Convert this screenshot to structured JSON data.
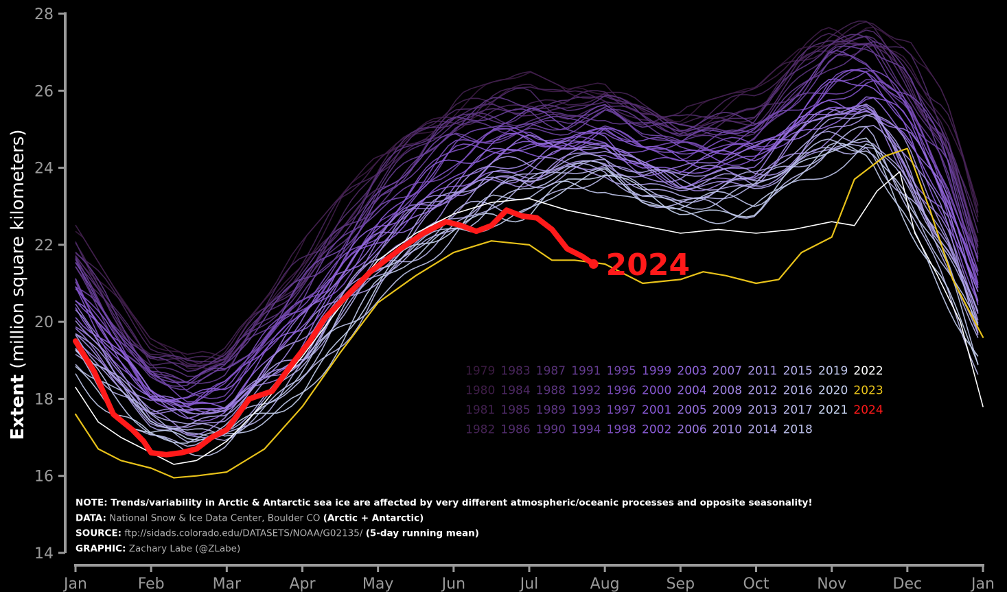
{
  "chart_data": {
    "type": "line",
    "title": "",
    "ylabel_bold": "Extent",
    "ylabel_rest": " (million square kilometers)",
    "xlabel": "",
    "ylim": [
      14,
      28
    ],
    "y_ticks": [
      14,
      16,
      18,
      20,
      22,
      24,
      26,
      28
    ],
    "x_tick_labels": [
      "Jan",
      "Feb",
      "Mar",
      "Apr",
      "May",
      "Jun",
      "Jul",
      "Aug",
      "Sep",
      "Oct",
      "Nov",
      "Dec",
      "Jan"
    ],
    "grid": false,
    "legend_position": "lower-right",
    "end_label": "2024",
    "colors": {
      "background": "#000000",
      "axis": "#9a9a9a",
      "year_2024": "#ff1a1a",
      "year_2023": "#e8c21a",
      "year_2022": "#ffffff",
      "early_years": "#3a1a40",
      "mid_years": "#8a5ad8",
      "recent_years": "#cfe6f2"
    },
    "legend_columns": [
      [
        "1979",
        "1980",
        "1981",
        "1982"
      ],
      [
        "1983",
        "1984",
        "1985",
        "1986"
      ],
      [
        "1987",
        "1988",
        "1989",
        "1990"
      ],
      [
        "1991",
        "1992",
        "1993",
        "1994"
      ],
      [
        "1995",
        "1996",
        "1997",
        "1998"
      ],
      [
        "1999",
        "2000",
        "2001",
        "2002"
      ],
      [
        "2003",
        "2004",
        "2005",
        "2006"
      ],
      [
        "2007",
        "2008",
        "2009",
        "2010"
      ],
      [
        "2011",
        "2012",
        "2013",
        "2014"
      ],
      [
        "2015",
        "2016",
        "2017",
        "2018"
      ],
      [
        "2019",
        "2020",
        "2021"
      ],
      [
        "2022",
        "2023",
        "2024"
      ]
    ],
    "climatology_envelope": {
      "x_month": [
        0,
        0.5,
        1,
        1.5,
        2,
        3,
        4,
        5,
        5.5,
        6,
        6.5,
        7,
        7.5,
        8,
        9,
        10,
        10.5,
        11,
        11.5,
        12
      ],
      "upper": [
        22.6,
        21,
        19.6,
        19.2,
        19.5,
        22.2,
        24.5,
        26,
        26.3,
        26.6,
        26.1,
        26.3,
        25.8,
        25.6,
        26.2,
        27.9,
        28,
        27.5,
        26,
        22.7
      ],
      "lower": [
        18.2,
        17.2,
        16.5,
        16.2,
        16.4,
        17.6,
        20,
        21.6,
        22.2,
        22.3,
        23,
        23.1,
        22.6,
        22.4,
        22.3,
        23.5,
        23.8,
        22,
        20,
        17.8
      ]
    },
    "series": [
      {
        "name": "2024",
        "x_month": [
          0,
          0.25,
          0.5,
          0.75,
          0.9,
          1.0,
          1.2,
          1.4,
          1.6,
          1.8,
          2.0,
          2.3,
          2.6,
          2.9,
          3.1,
          3.3,
          3.6,
          3.9,
          4.1,
          4.3,
          4.6,
          4.9,
          5.1,
          5.3,
          5.5,
          5.7,
          5.9,
          6.1,
          6.3,
          6.5,
          6.7,
          6.85
        ],
        "values": [
          19.5,
          18.7,
          17.6,
          17.2,
          16.9,
          16.6,
          16.55,
          16.6,
          16.7,
          17.0,
          17.2,
          18.0,
          18.2,
          19.0,
          19.5,
          20.1,
          20.7,
          21.3,
          21.6,
          21.9,
          22.3,
          22.6,
          22.5,
          22.35,
          22.5,
          22.9,
          22.75,
          22.7,
          22.4,
          21.9,
          21.7,
          21.5
        ]
      },
      {
        "name": "2023",
        "x_month": [
          0,
          0.3,
          0.6,
          1.0,
          1.3,
          1.6,
          2.0,
          2.5,
          3.0,
          3.5,
          4.0,
          4.5,
          5.0,
          5.5,
          6.0,
          6.3,
          6.6,
          7.0,
          7.5,
          8.0,
          8.3,
          8.6,
          9.0,
          9.3,
          9.6,
          10.0,
          10.3,
          10.7,
          11.0,
          11.3,
          11.6,
          12.0
        ],
        "values": [
          17.6,
          16.7,
          16.4,
          16.2,
          15.95,
          16.0,
          16.1,
          16.7,
          17.8,
          19.2,
          20.5,
          21.2,
          21.8,
          22.1,
          22.0,
          21.6,
          21.6,
          21.5,
          21.0,
          21.1,
          21.3,
          21.2,
          21.0,
          21.1,
          21.8,
          22.2,
          23.7,
          24.3,
          24.5,
          22.9,
          21.1,
          19.6
        ]
      },
      {
        "name": "2022",
        "x_month": [
          0,
          0.3,
          0.6,
          1.0,
          1.3,
          1.6,
          2.0,
          2.5,
          3.0,
          3.5,
          4.0,
          4.5,
          5.0,
          5.5,
          6.0,
          6.5,
          7.0,
          7.5,
          8.0,
          8.5,
          9.0,
          9.5,
          10.0,
          10.3,
          10.6,
          10.9,
          11.1,
          11.4,
          11.7,
          12.0
        ],
        "values": [
          18.3,
          17.4,
          17.0,
          16.6,
          16.3,
          16.4,
          16.9,
          17.9,
          19.1,
          20.4,
          21.6,
          22.3,
          22.8,
          23.1,
          23.2,
          22.9,
          22.7,
          22.5,
          22.3,
          22.4,
          22.3,
          22.4,
          22.6,
          22.5,
          23.4,
          23.9,
          22.3,
          21.2,
          20.0,
          17.8
        ]
      }
    ],
    "notes": [
      {
        "key": "NOTE:",
        "text": " Trends/variability in Arctic & Antarctic sea ice are affected by very different atmospheric/oceanic processes and opposite seasonality!"
      },
      {
        "key": "DATA:",
        "text": " National Snow & Ice Data Center, Boulder CO ",
        "extra": "(Arctic + Antarctic)"
      },
      {
        "key": "SOURCE:",
        "text": " ftp://sidads.colorado.edu/DATASETS/NOAA/G02135/ ",
        "extra": "(5-day running mean)"
      },
      {
        "key": "GRAPHIC:",
        "text": " Zachary Labe (@ZLabe)"
      }
    ]
  }
}
